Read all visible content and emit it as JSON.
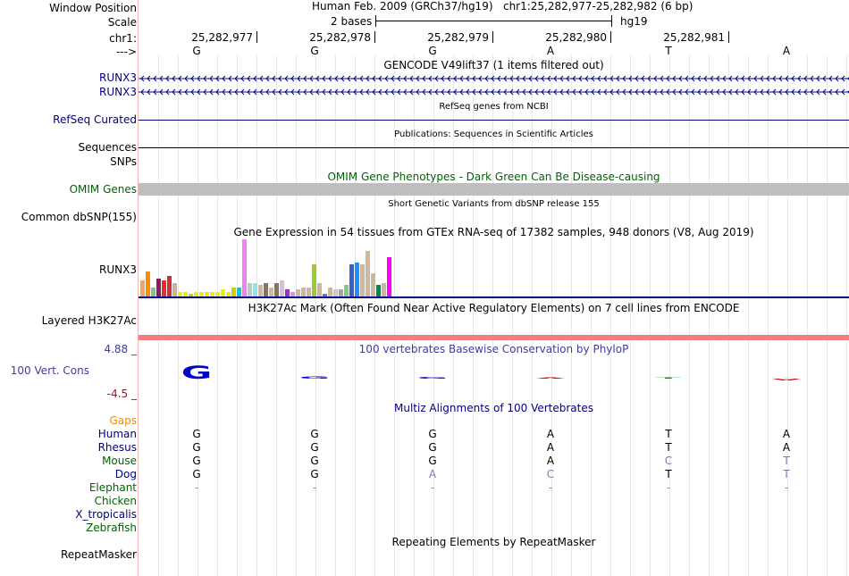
{
  "header": {
    "window_position_label": "Window Position",
    "scale_label": "Scale",
    "chrom_label": "chr1:",
    "strand_label": "--->",
    "assembly": "Human Feb. 2009 (GRCh37/hg19)",
    "position": "chr1:25,282,977-25,282,982 (6 bp)",
    "scale_text": "2 bases",
    "db": "hg19",
    "coords": [
      "25,282,977",
      "25,282,978",
      "25,282,979",
      "25,282,980",
      "25,282,981"
    ],
    "bases": [
      "G",
      "G",
      "G",
      "A",
      "T",
      "A"
    ]
  },
  "tracks": {
    "gencode": {
      "title": "GENCODE V49lift37 (1 items filtered out)",
      "items": [
        "RUNX3",
        "RUNX3"
      ]
    },
    "refseq": {
      "title": "RefSeq genes from NCBI",
      "label": "RefSeq Curated"
    },
    "publications": {
      "title": "Publications: Sequences in Scientific Articles",
      "label": "Sequences"
    },
    "snps": {
      "label": "SNPs"
    },
    "omim": {
      "title": "OMIM Gene Phenotypes - Dark Green Can Be Disease-causing",
      "label": "OMIM Genes"
    },
    "dbsnp": {
      "title": "Short Genetic Variants from dbSNP release 155",
      "label": "Common dbSNP(155)"
    },
    "gtex": {
      "title": "Gene Expression in 54 tissues from GTEx RNA-seq of 17382 samples, 948 donors (V8, Aug 2019)",
      "label": "RUNX3"
    },
    "h3k27ac": {
      "title": "H3K27Ac Mark (Often Found Near Active Regulatory Elements) on 7 cell lines from ENCODE",
      "label": "Layered H3K27Ac"
    },
    "phylop": {
      "title": "100 vertebrates Basewise Conservation by PhyloP",
      "label": "100 Vert. Cons",
      "max": "4.88 _",
      "min": "-4.5 _"
    },
    "multiz": {
      "title": "Multiz Alignments of 100 Vertebrates",
      "gaps_label": "Gaps"
    },
    "repeatmasker": {
      "title": "Repeating Elements by RepeatMasker",
      "label": "RepeatMasker"
    }
  },
  "alignments": [
    {
      "species": "Human",
      "bases": [
        "G",
        "G",
        "G",
        "A",
        "T",
        "A"
      ]
    },
    {
      "species": "Rhesus",
      "bases": [
        "G",
        "G",
        "G",
        "A",
        "T",
        "A"
      ]
    },
    {
      "species": "Mouse",
      "bases": [
        "G",
        "G",
        "G",
        "A",
        "C",
        "T"
      ]
    },
    {
      "species": "Dog",
      "bases": [
        "G",
        "G",
        "A",
        "C",
        "T",
        "T"
      ]
    },
    {
      "species": "Elephant",
      "bases": [
        "-",
        "-",
        "-",
        "-",
        "-",
        "-"
      ]
    },
    {
      "species": "Chicken",
      "bases": [
        "",
        "",
        "",
        "",
        "",
        ""
      ]
    },
    {
      "species": "X_tropicalis",
      "bases": [
        "",
        "",
        "",
        "",
        "",
        ""
      ]
    },
    {
      "species": "Zebrafish",
      "bases": [
        "",
        "",
        "",
        "",
        "",
        ""
      ]
    }
  ],
  "colors": {
    "navy": "#000080",
    "green": "#006400",
    "h3k27ac": "#f08080",
    "omim": "#bebebe",
    "gtex_pink": "#ff00ff"
  },
  "gtex_bars": [
    {
      "color": "#f4a460",
      "v": 7
    },
    {
      "color": "#ff8c00",
      "v": 11
    },
    {
      "color": "#8fbc8f",
      "v": 4
    },
    {
      "color": "#8b1c62",
      "v": 8
    },
    {
      "color": "#ee2c2c",
      "v": 7
    },
    {
      "color": "#cd3333",
      "v": 9
    },
    {
      "color": "#d2b48c",
      "v": 6
    },
    {
      "color": "#eeee00",
      "v": 2
    },
    {
      "color": "#eeee00",
      "v": 2
    },
    {
      "color": "#cdcd00",
      "v": 1
    },
    {
      "color": "#eeee00",
      "v": 2
    },
    {
      "color": "#eeee00",
      "v": 2
    },
    {
      "color": "#eeee00",
      "v": 2
    },
    {
      "color": "#eeee00",
      "v": 2
    },
    {
      "color": "#eeee00",
      "v": 2
    },
    {
      "color": "#eeee00",
      "v": 3
    },
    {
      "color": "#eeee00",
      "v": 2
    },
    {
      "color": "#cdcd00",
      "v": 4
    },
    {
      "color": "#00cdcd",
      "v": 4
    },
    {
      "color": "#ee82ee",
      "v": 25
    },
    {
      "color": "#b4cdcd",
      "v": 6
    },
    {
      "color": "#8ee5ee",
      "v": 6
    },
    {
      "color": "#cdb79e",
      "v": 5
    },
    {
      "color": "#8b7355",
      "v": 6
    },
    {
      "color": "#cdb79e",
      "v": 4
    },
    {
      "color": "#8b7355",
      "v": 6
    },
    {
      "color": "#d8bfd8",
      "v": 7
    },
    {
      "color": "#9932cc",
      "v": 3
    },
    {
      "color": "#ee82ee",
      "v": 2
    },
    {
      "color": "#cdb79e",
      "v": 3
    },
    {
      "color": "#cdb79e",
      "v": 4
    },
    {
      "color": "#cdb79e",
      "v": 4
    },
    {
      "color": "#9acd32",
      "v": 14
    },
    {
      "color": "#cdb79e",
      "v": 6
    },
    {
      "color": "#7a67ee",
      "v": 1
    },
    {
      "color": "#cdb79e",
      "v": 4
    },
    {
      "color": "#cdc9c9",
      "v": 3
    },
    {
      "color": "#a6a6a6",
      "v": 3
    },
    {
      "color": "#7ccd7c",
      "v": 5
    },
    {
      "color": "#3a5fcd",
      "v": 14
    },
    {
      "color": "#1e90ff",
      "v": 15
    },
    {
      "color": "#cdb79e",
      "v": 14
    },
    {
      "color": "#cdb79e",
      "v": 20
    },
    {
      "color": "#cdb79e",
      "v": 10
    },
    {
      "color": "#008b45",
      "v": 5
    },
    {
      "color": "#cdb79e",
      "v": 6
    },
    {
      "color": "#ff00ff",
      "v": 17
    }
  ],
  "phylop_values": [
    4.7,
    0.9,
    0.6,
    0.3,
    0.3,
    -0.7
  ]
}
